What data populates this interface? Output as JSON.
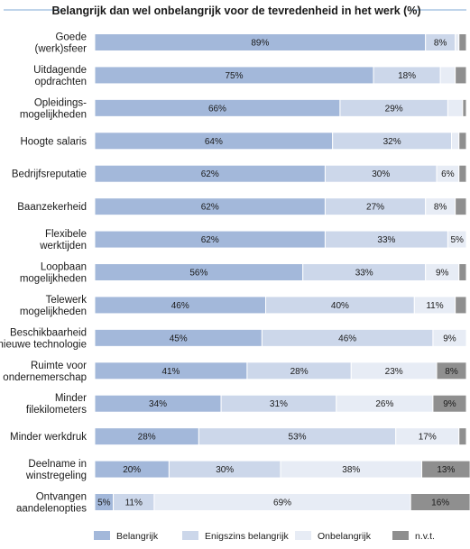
{
  "chart_data": {
    "type": "bar",
    "orientation": "horizontal",
    "stacked": true,
    "title": "Belangrijk dan wel onbelangrijk voor de tevredenheid in het werk (%)",
    "categories": [
      "Goede\n(werk)sfeer",
      "Uitdagende\nopdrachten",
      "Opleidings-\nmogelijkheden",
      "Hoogte salaris",
      "Bedrijfsreputatie",
      "Baanzekerheid",
      "Flexibele\nwerktijden",
      "Loopbaan\nmogelijkheden",
      "Telewerk\nmogelijkheden",
      "Beschikbaarheid\nnieuwe technologie",
      "Ruimte voor\nondernemerschap",
      "Minder\nfilekilometers",
      "Minder werkdruk",
      "Deelname in\nwinstregeling",
      "Ontvangen\naandelenopties"
    ],
    "series": [
      {
        "name": "Belangrijk",
        "values": [
          89,
          75,
          66,
          64,
          62,
          62,
          62,
          56,
          46,
          45,
          41,
          34,
          28,
          20,
          5
        ]
      },
      {
        "name": "Enigszins belangrijk",
        "values": [
          8,
          18,
          29,
          32,
          30,
          27,
          33,
          33,
          40,
          46,
          28,
          31,
          53,
          30,
          11
        ]
      },
      {
        "name": "Onbelangrijk",
        "values": [
          1,
          4,
          4,
          2,
          6,
          8,
          5,
          9,
          11,
          9,
          23,
          26,
          17,
          38,
          69
        ]
      },
      {
        "name": "n.v.t.",
        "values": [
          2,
          3,
          1,
          2,
          2,
          3,
          0,
          2,
          3,
          0,
          8,
          9,
          2,
          13,
          16
        ]
      }
    ],
    "value_labels": [
      [
        "89%",
        "8%",
        "",
        ""
      ],
      [
        "75%",
        "18%",
        "",
        ""
      ],
      [
        "66%",
        "29%",
        "",
        ""
      ],
      [
        "64%",
        "32%",
        "",
        ""
      ],
      [
        "62%",
        "30%",
        "6%",
        ""
      ],
      [
        "62%",
        "27%",
        "8%",
        ""
      ],
      [
        "62%",
        "33%",
        "5%",
        ""
      ],
      [
        "56%",
        "33%",
        "9%",
        ""
      ],
      [
        "46%",
        "40%",
        "11%",
        ""
      ],
      [
        "45%",
        "46%",
        "9%",
        ""
      ],
      [
        "41%",
        "28%",
        "23%",
        "8%"
      ],
      [
        "34%",
        "31%",
        "26%",
        "9%"
      ],
      [
        "28%",
        "53%",
        "17%",
        ""
      ],
      [
        "20%",
        "30%",
        "38%",
        "13%"
      ],
      [
        "5%",
        "11%",
        "69%",
        "16%"
      ]
    ],
    "xlim": [
      0,
      100
    ],
    "grid": false,
    "legend": "bottom",
    "colors": {
      "Belangrijk": "#a3b8da",
      "Enigszins belangrijk": "#ccd7ea",
      "Onbelangrijk": "#e7ecf5",
      "n.v.t.": "#8f8f8f",
      "title_rule": "#7fa9d4"
    }
  }
}
